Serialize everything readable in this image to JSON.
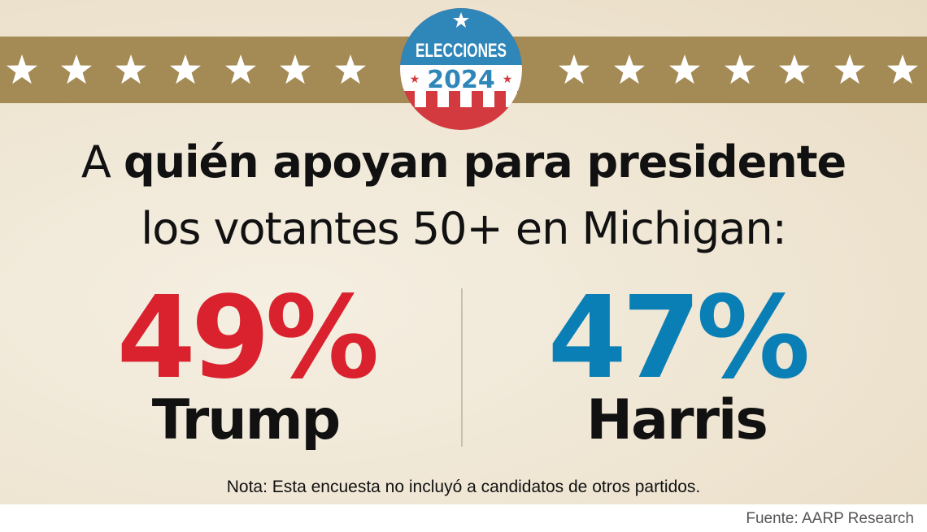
{
  "logo": {
    "line1": "ELECCIONES",
    "line2": "2024"
  },
  "headline": {
    "prefix": "A ",
    "bold": "quién apoyan para presidente",
    "line2": "los votantes 50+ en Michigan:"
  },
  "results": [
    {
      "candidate": "Trump",
      "percent": "49%",
      "color": "#d9222e"
    },
    {
      "candidate": "Harris",
      "percent": "47%",
      "color": "#0a7fb5"
    }
  ],
  "note": "Nota: Esta encuesta no incluyó a candidatos de otros partidos.",
  "source": "Fuente: AARP Research",
  "colors": {
    "band": "#a48a55",
    "logo_blue": "#2f86b8",
    "logo_red": "#d23a3f"
  }
}
